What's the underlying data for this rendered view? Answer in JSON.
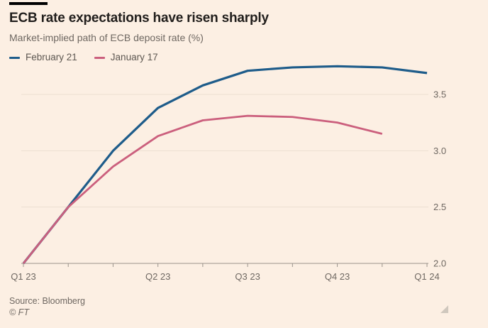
{
  "header": {
    "title": "ECB rate expectations have risen sharply",
    "subtitle": "Market-implied path of ECB deposit rate (%)"
  },
  "footer": {
    "source": "Source: Bloomberg",
    "copyright": "© FT"
  },
  "colors": {
    "background": "#fcefe3",
    "title_text": "#211e1c",
    "muted_text": "#6f6862",
    "legend_text": "#5d5751",
    "grid": "#eddfd1",
    "axis": "#9a938b",
    "accent_bar": "#000000",
    "resize_handle": "#cfc7bd",
    "series_february": "#1e5c8a",
    "series_january": "#cb5f7d"
  },
  "chart_data": {
    "type": "line",
    "title": "ECB rate expectations have risen sharply",
    "subtitle": "Market-implied path of ECB deposit rate (%)",
    "x_tick_count": 10,
    "x_tick_labels": [
      "Q1 23",
      "Q2 23",
      "Q3 23",
      "Q4 23",
      "Q1 24"
    ],
    "x_tick_label_indices": [
      0,
      3,
      5,
      7,
      9
    ],
    "ylim": [
      2.0,
      3.8
    ],
    "y_gridlines": [
      2.0,
      2.5,
      3.0,
      3.5
    ],
    "grid": true,
    "legend_position": "top-left",
    "y_axis_side": "right",
    "series": [
      {
        "name": "February 21",
        "color": "#1e5c8a",
        "values": [
          2.0,
          2.5,
          3.0,
          3.38,
          3.58,
          3.71,
          3.74,
          3.75,
          3.74,
          3.69
        ]
      },
      {
        "name": "January 17",
        "color": "#cb5f7d",
        "values": [
          2.0,
          2.5,
          2.86,
          3.13,
          3.27,
          3.31,
          3.3,
          3.25,
          3.15
        ]
      }
    ]
  }
}
